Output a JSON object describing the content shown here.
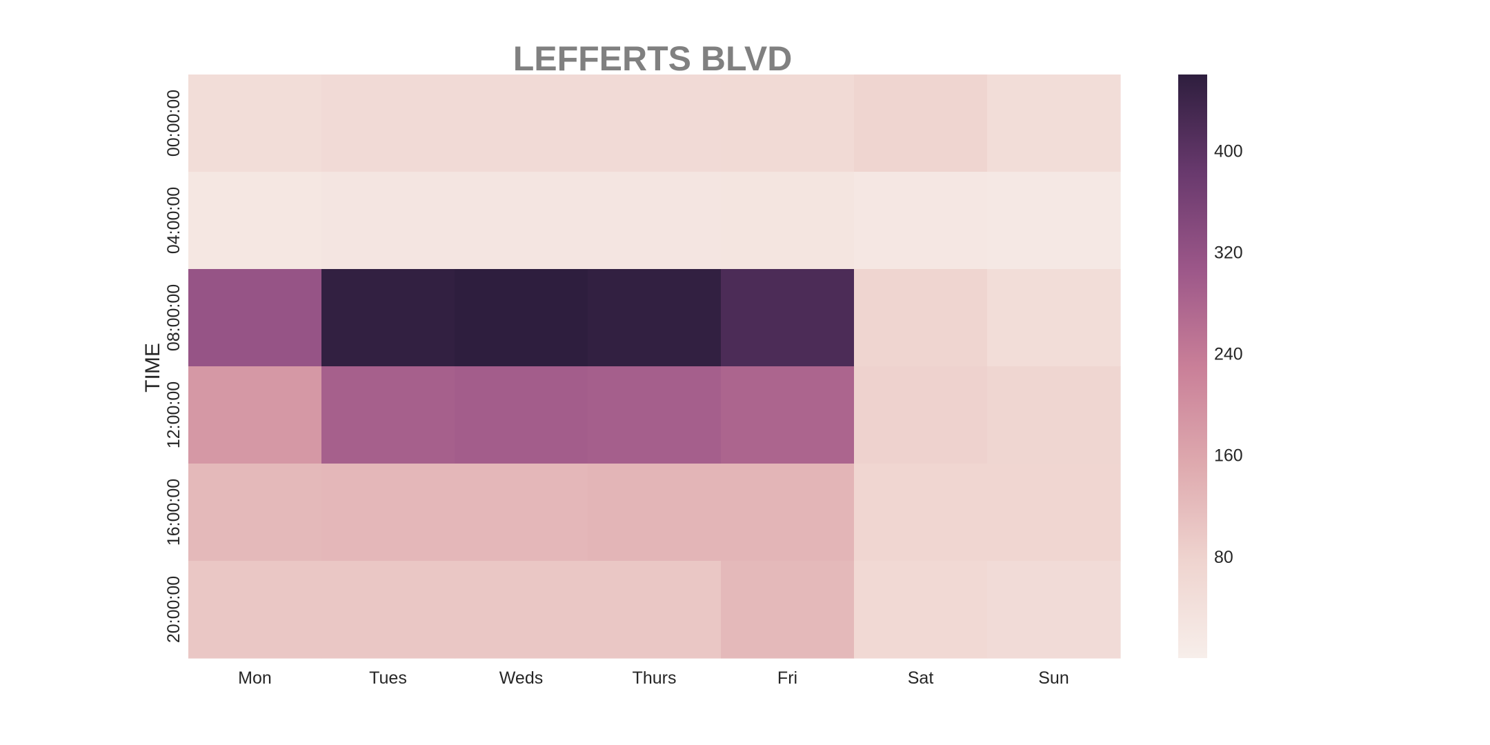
{
  "chart_data": {
    "type": "heatmap",
    "title": "LEFFERTS BLVD",
    "ylabel": "TIME",
    "xlabel": "",
    "x_categories": [
      "Mon",
      "Tues",
      "Weds",
      "Thurs",
      "Fri",
      "Sat",
      "Sun"
    ],
    "y_categories": [
      "00:00:00",
      "04:00:00",
      "08:00:00",
      "12:00:00",
      "16:00:00",
      "20:00:00"
    ],
    "values": [
      [
        50,
        58,
        58,
        58,
        60,
        75,
        50
      ],
      [
        22,
        26,
        26,
        26,
        27,
        20,
        18
      ],
      [
        315,
        455,
        460,
        455,
        420,
        75,
        50
      ],
      [
        185,
        290,
        295,
        292,
        280,
        80,
        72
      ],
      [
        125,
        128,
        128,
        132,
        132,
        70,
        70
      ],
      [
        100,
        100,
        100,
        100,
        125,
        62,
        55
      ]
    ],
    "colorbar": {
      "min": 0,
      "max": 460,
      "ticks": [
        80,
        160,
        240,
        320,
        400
      ],
      "colors": [
        "#f7eeea",
        "#efd4cf",
        "#dea9ae",
        "#c97f98",
        "#9c5789",
        "#68396d",
        "#2e1e3e"
      ]
    }
  }
}
